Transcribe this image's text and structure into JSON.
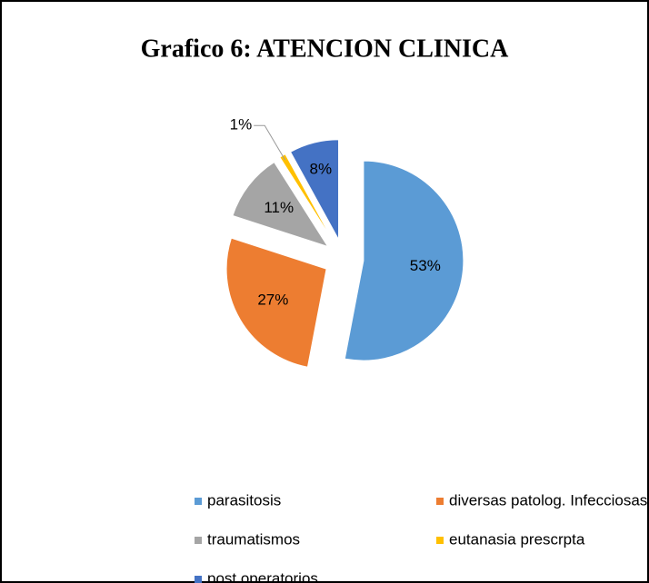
{
  "chart_data": {
    "type": "pie",
    "title": "Grafico 6: ATENCION CLINICA",
    "categories": [
      "parasitosis",
      "diversas patolog. Infecciosas",
      "traumatismos",
      "eutanasia prescrpta",
      "post operatorios"
    ],
    "values": [
      53,
      27,
      11,
      1,
      8
    ],
    "value_labels": [
      "53%",
      "27%",
      "11%",
      "1%",
      "8%"
    ],
    "colors": [
      "#5b9bd5",
      "#ed7d31",
      "#a5a5a5",
      "#ffc000",
      "#4472c4"
    ],
    "legend": "bottom"
  }
}
